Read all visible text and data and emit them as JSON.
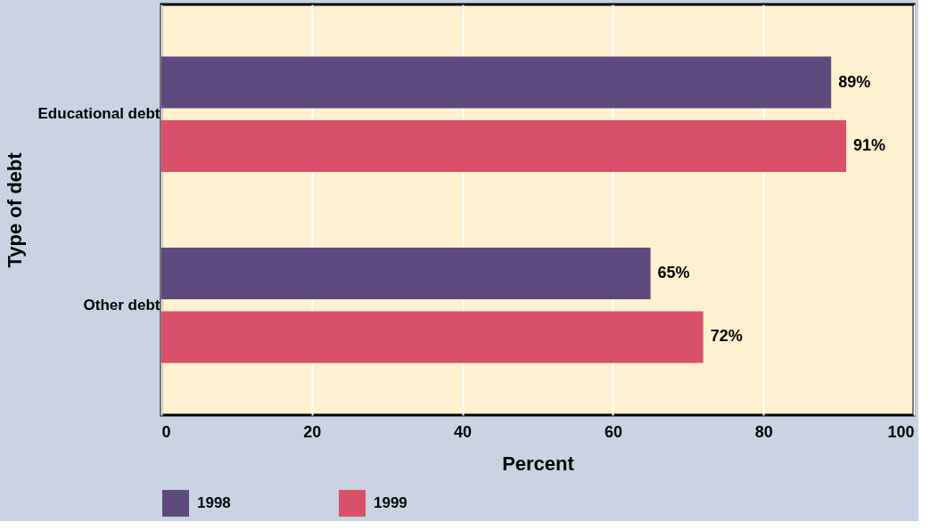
{
  "chart_data": {
    "type": "bar",
    "orientation": "horizontal",
    "ylabel": "Type of debt",
    "xlabel": "Percent",
    "categories": [
      "Educational debt",
      "Other debt"
    ],
    "series": [
      {
        "name": "1998",
        "color": "#5e4a7e",
        "values": [
          89,
          65
        ],
        "value_labels": [
          "89%",
          "65%"
        ]
      },
      {
        "name": "1999",
        "color": "#d9506a",
        "values": [
          91,
          72
        ],
        "value_labels": [
          "91%",
          "72%"
        ]
      }
    ],
    "xlim": [
      0,
      100
    ],
    "xticks": [
      0,
      20,
      40,
      60,
      80,
      100
    ],
    "grid": "x",
    "legend": "bottom"
  }
}
